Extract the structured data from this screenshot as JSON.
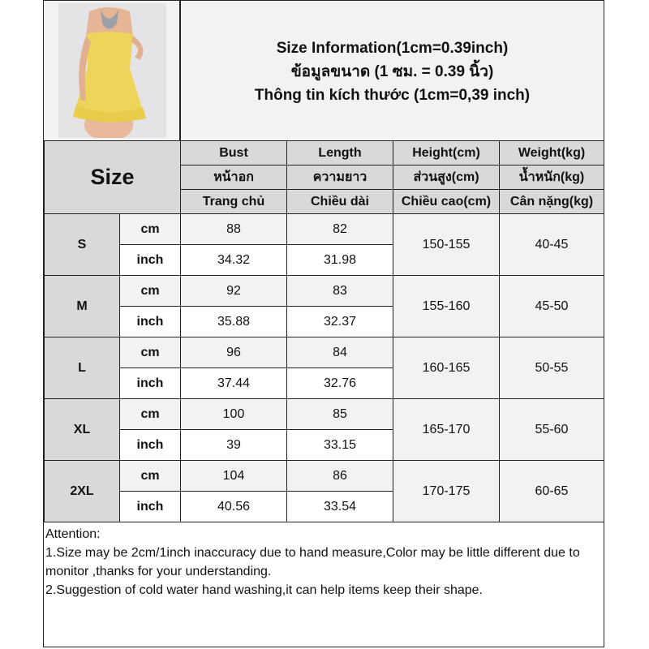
{
  "header": {
    "title_en": "Size Information(1cm=0.39inch)",
    "title_th": "ข้อมูลขนาด (1 ซม. = 0.39 นิ้ว)",
    "title_vi": "Thông tin kích thước (1cm=0,39 inch)"
  },
  "table": {
    "size_label": "Size",
    "columns": [
      {
        "en": "Bust",
        "th": "หน้าอก",
        "vi": "Trang chủ"
      },
      {
        "en": "Length",
        "th": "ความยาว",
        "vi": "Chiều dài"
      },
      {
        "en": "Height(cm)",
        "th": "ส่วนสูง(cm)",
        "vi": "Chiều cao(cm)"
      },
      {
        "en": "Weight(kg)",
        "th": "น้ำหนัก(kg)",
        "vi": "Cân nặng(kg)"
      }
    ],
    "unit_cm": "cm",
    "unit_inch": "inch",
    "rows": [
      {
        "size": "S",
        "bust_cm": "88",
        "length_cm": "82",
        "bust_inch": "34.32",
        "length_inch": "31.98",
        "height": "150-155",
        "weight": "40-45"
      },
      {
        "size": "M",
        "bust_cm": "92",
        "length_cm": "83",
        "bust_inch": "35.88",
        "length_inch": "32.37",
        "height": "155-160",
        "weight": "45-50"
      },
      {
        "size": "L",
        "bust_cm": "96",
        "length_cm": "84",
        "bust_inch": "37.44",
        "length_inch": "32.76",
        "height": "160-165",
        "weight": "50-55"
      },
      {
        "size": "XL",
        "bust_cm": "100",
        "length_cm": "85",
        "bust_inch": "39",
        "length_inch": "33.15",
        "height": "165-170",
        "weight": "55-60"
      },
      {
        "size": "2XL",
        "bust_cm": "104",
        "length_cm": "86",
        "bust_inch": "40.56",
        "length_inch": "33.54",
        "height": "170-175",
        "weight": "60-65"
      }
    ]
  },
  "notes": {
    "heading": "Attention:",
    "line1": "1.Size may be 2cm/1inch inaccuracy due to hand measure,Color may be little different due to monitor ,thanks for your understanding.",
    "line2": "2.Suggestion of cold water hand washing,it can help items keep their shape."
  }
}
